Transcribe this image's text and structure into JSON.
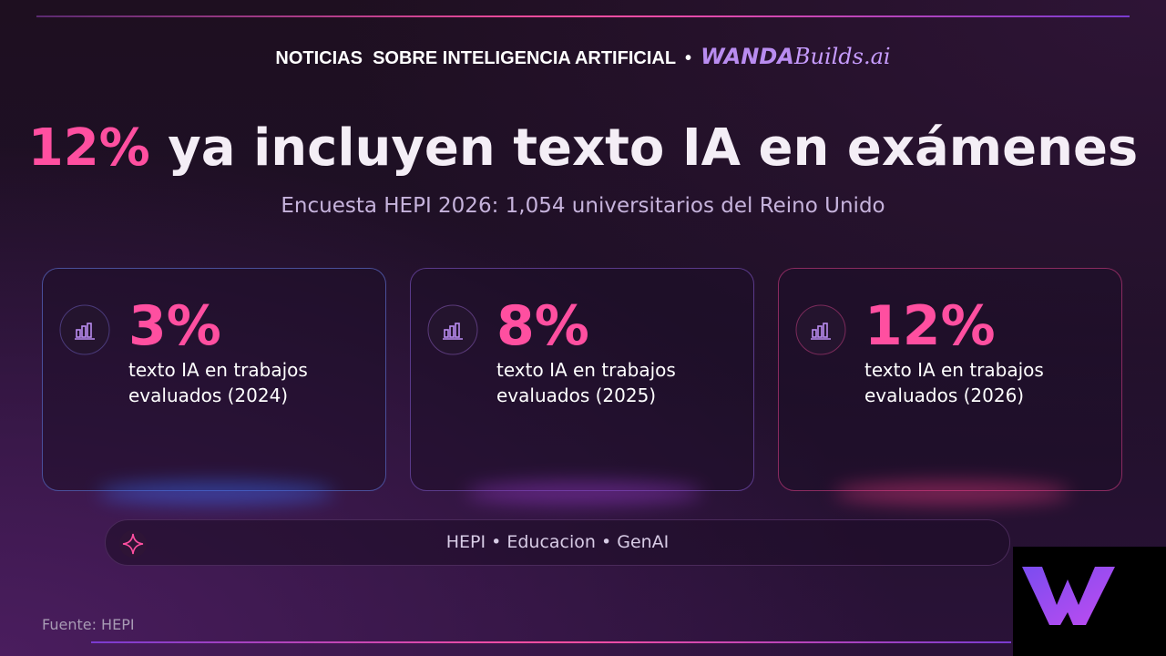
{
  "header": {
    "section": "NOTICIAS  SOBRE INTELIGENCIA ARTIFICIAL",
    "separator": "•",
    "brand": "WANDA",
    "brand_suffix": "Builds.ai"
  },
  "title": {
    "highlight": "12%",
    "text": "ya incluyen texto IA en exámenes"
  },
  "subtitle": "Encuesta HEPI 2026: 1,054 universitarios del Reino Unido",
  "cards": [
    {
      "value": "3%",
      "label_line1": "texto IA en trabajos",
      "label_line2": "evaluados (2024)"
    },
    {
      "value": "8%",
      "label_line1": "texto IA en trabajos",
      "label_line2": "evaluados (2025)"
    },
    {
      "value": "12%",
      "label_line1": "texto IA en trabajos",
      "label_line2": "evaluados (2026)"
    }
  ],
  "tags": "HEPI • Educacion • GenAI",
  "source": "Fuente: HEPI"
}
